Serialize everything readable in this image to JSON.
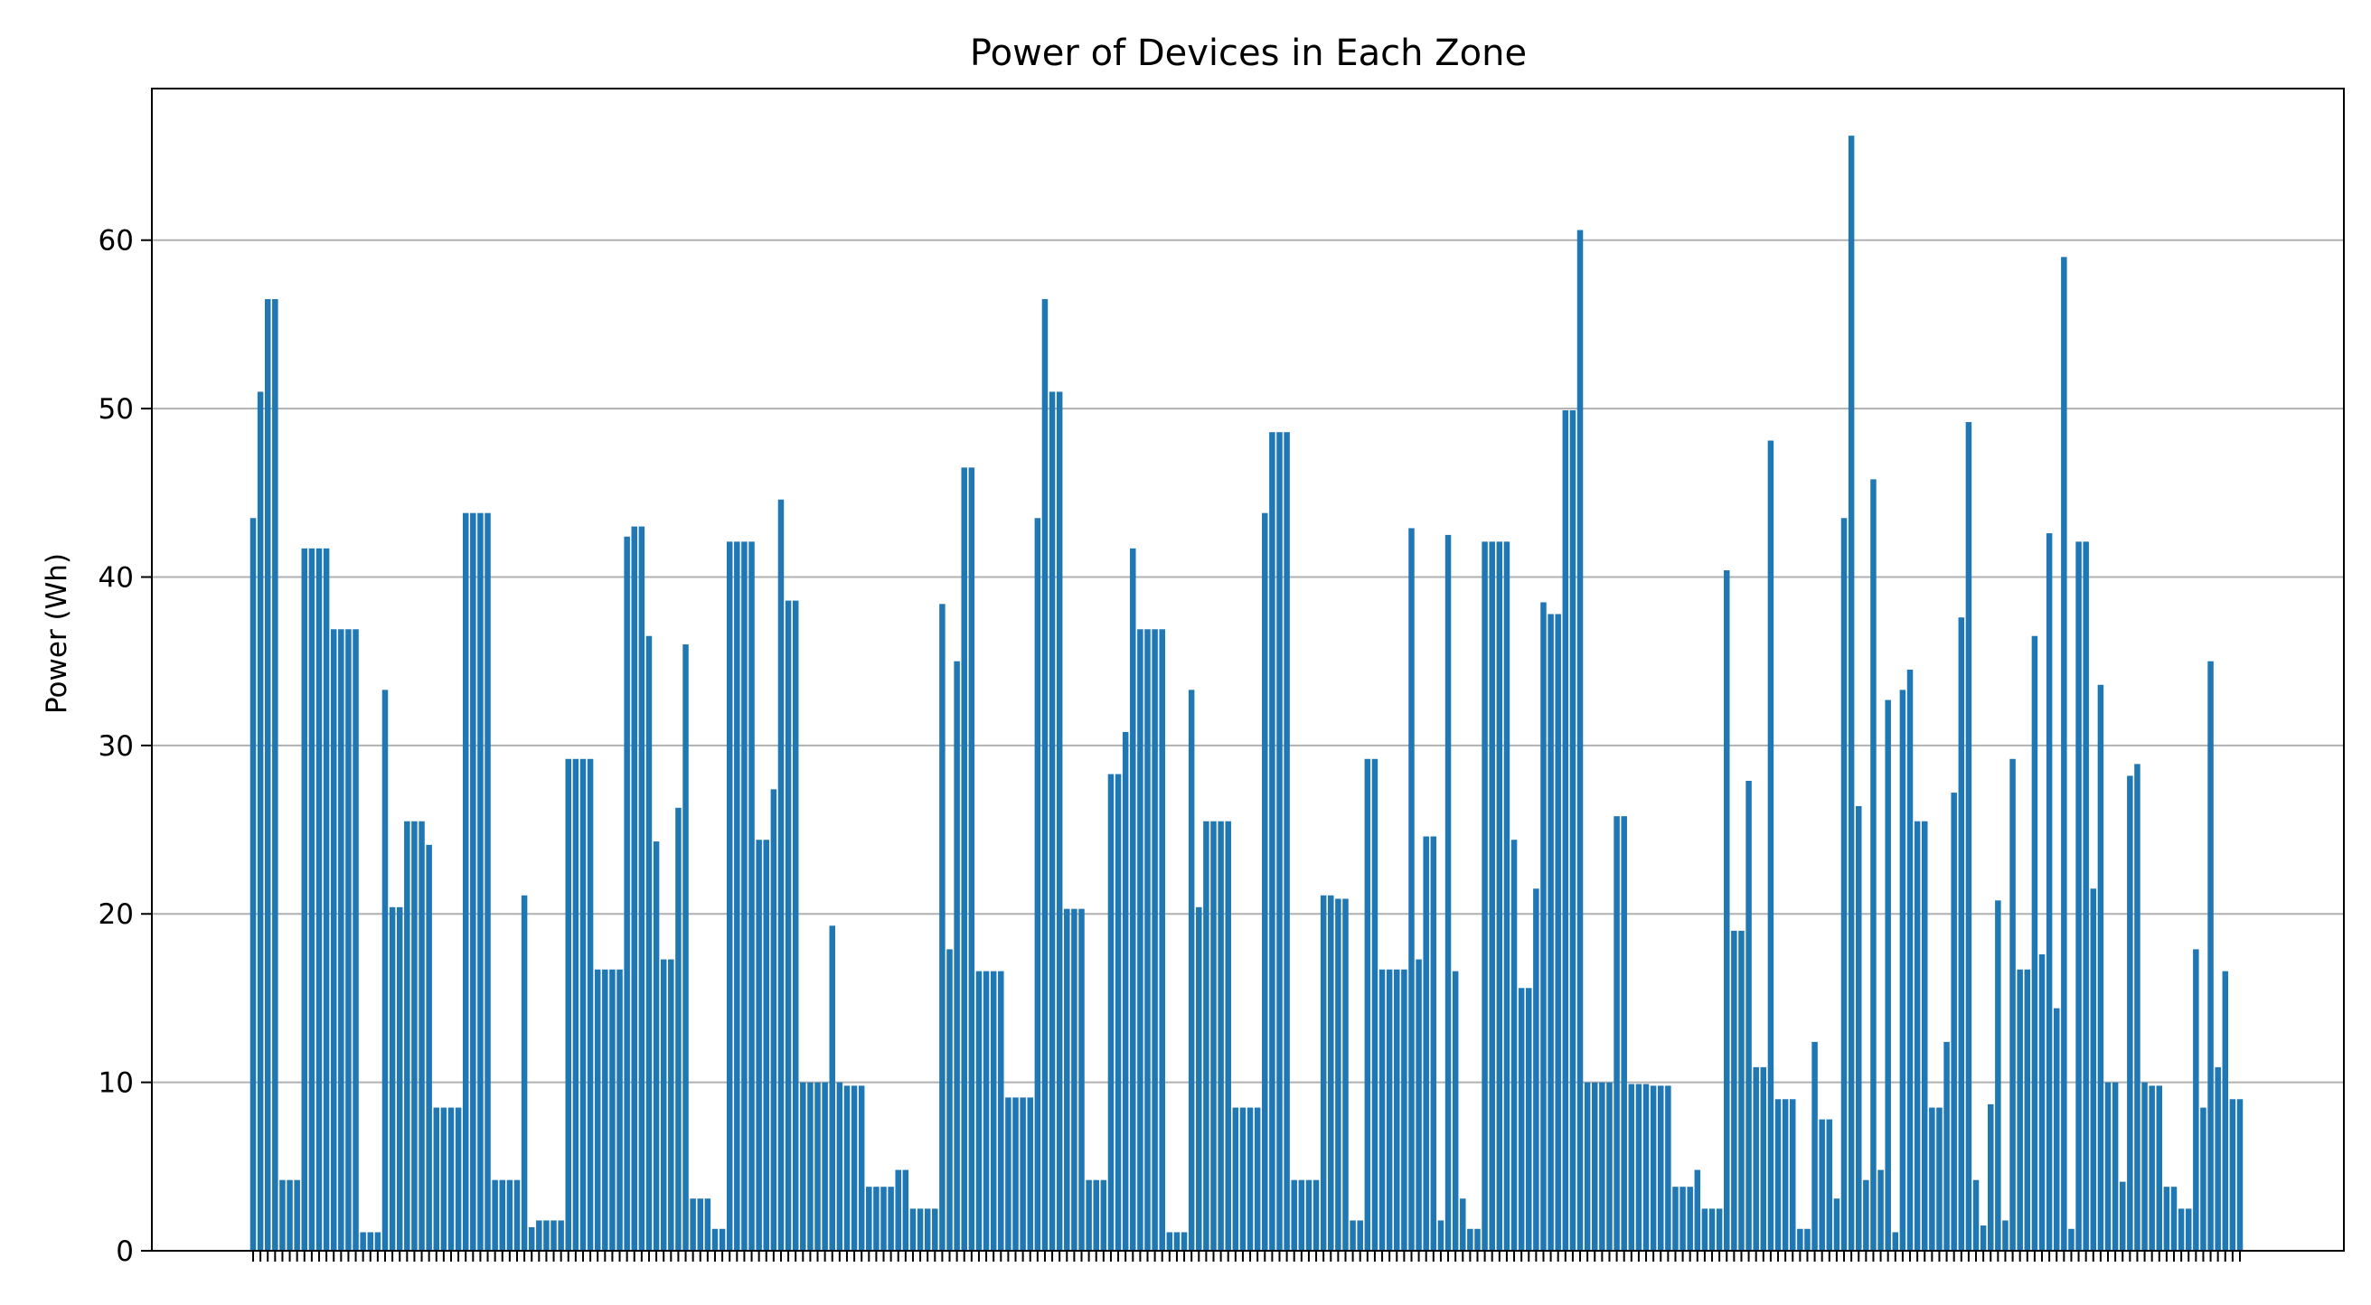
{
  "chart_data": {
    "type": "bar",
    "title": "Power of Devices in Each Zone",
    "xlabel": "",
    "ylabel": "Power (Wh)",
    "ylim": [
      0,
      69
    ],
    "yticks": [
      0,
      10,
      20,
      30,
      40,
      50,
      60
    ],
    "grid": "y",
    "legend": "none",
    "bar_color": "#1f77b4",
    "values": [
      43.5,
      51.0,
      56.5,
      56.5,
      4.2,
      4.2,
      4.2,
      41.7,
      41.7,
      41.7,
      41.7,
      36.9,
      36.9,
      36.9,
      36.9,
      1.1,
      1.1,
      1.1,
      33.3,
      20.4,
      20.4,
      25.5,
      25.5,
      25.5,
      24.1,
      8.5,
      8.5,
      8.5,
      8.5,
      43.8,
      43.8,
      43.8,
      43.8,
      4.2,
      4.2,
      4.2,
      4.2,
      21.1,
      1.4,
      1.8,
      1.8,
      1.8,
      1.8,
      29.2,
      29.2,
      29.2,
      29.2,
      16.7,
      16.7,
      16.7,
      16.7,
      42.4,
      43.0,
      43.0,
      36.5,
      24.3,
      17.3,
      17.3,
      26.3,
      36.0,
      3.1,
      3.1,
      3.1,
      1.3,
      1.3,
      42.1,
      42.1,
      42.1,
      42.1,
      24.4,
      24.4,
      27.4,
      44.6,
      38.6,
      38.6,
      10.0,
      10.0,
      10.0,
      10.0,
      19.3,
      10.0,
      9.8,
      9.8,
      9.8,
      3.8,
      3.8,
      3.8,
      3.8,
      4.8,
      4.8,
      2.5,
      2.5,
      2.5,
      2.5,
      38.4,
      17.9,
      35.0,
      46.5,
      46.5,
      16.6,
      16.6,
      16.6,
      16.6,
      9.1,
      9.1,
      9.1,
      9.1,
      43.5,
      56.5,
      51.0,
      51.0,
      20.3,
      20.3,
      20.3,
      4.2,
      4.2,
      4.2,
      28.3,
      28.3,
      30.8,
      41.7,
      36.9,
      36.9,
      36.9,
      36.9,
      1.1,
      1.1,
      1.1,
      33.3,
      20.4,
      25.5,
      25.5,
      25.5,
      25.5,
      8.5,
      8.5,
      8.5,
      8.5,
      43.8,
      48.6,
      48.6,
      48.6,
      4.2,
      4.2,
      4.2,
      4.2,
      21.1,
      21.1,
      20.9,
      20.9,
      1.8,
      1.8,
      29.2,
      29.2,
      16.7,
      16.7,
      16.7,
      16.7,
      42.9,
      17.3,
      24.6,
      24.6,
      1.8,
      42.5,
      16.6,
      3.1,
      1.3,
      1.3,
      42.1,
      42.1,
      42.1,
      42.1,
      24.4,
      15.6,
      15.6,
      21.5,
      38.5,
      37.8,
      37.8,
      49.9,
      49.9,
      60.6,
      10.0,
      10.0,
      10.0,
      10.0,
      25.8,
      25.8,
      9.9,
      9.9,
      9.9,
      9.8,
      9.8,
      9.8,
      3.8,
      3.8,
      3.8,
      4.8,
      2.5,
      2.5,
      2.5,
      40.4,
      19.0,
      19.0,
      27.9,
      10.9,
      10.9,
      48.1,
      9.0,
      9.0,
      9.0,
      1.3,
      1.3,
      12.4,
      7.8,
      7.8,
      3.1,
      43.5,
      66.2,
      26.4,
      4.2,
      45.8,
      4.8,
      32.7,
      1.1,
      33.3,
      34.5,
      25.5,
      25.5,
      8.5,
      8.5,
      12.4,
      27.2,
      37.6,
      49.2,
      4.2,
      1.5,
      8.7,
      20.8,
      1.8,
      29.2,
      16.7,
      16.7,
      36.5,
      17.6,
      42.6,
      14.4,
      59.0,
      1.3,
      42.1,
      42.1,
      21.5,
      33.6,
      10.0,
      10.0,
      4.1,
      28.2,
      28.9,
      10.0,
      9.8,
      9.8,
      3.8,
      3.8,
      2.5,
      2.5,
      17.9,
      8.5,
      35.0,
      10.9,
      16.6,
      9.0,
      9.0
    ]
  }
}
